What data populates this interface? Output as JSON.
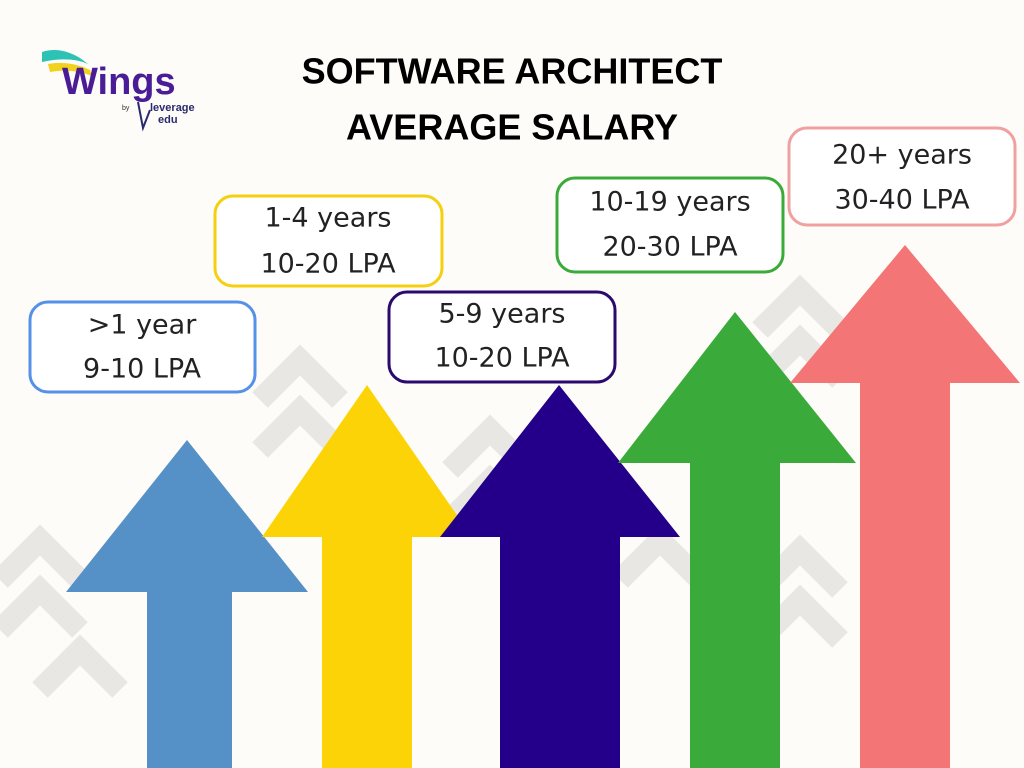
{
  "logo": {
    "name": "Wings",
    "by": "by",
    "brand": [
      "leverage",
      "edu"
    ]
  },
  "title": [
    "SOFTWARE ARCHITECT",
    "AVERAGE SALARY"
  ],
  "levels": [
    {
      "experience": ">1 year",
      "salary": "9-10 LPA"
    },
    {
      "experience": "1-4 years",
      "salary": "10-20 LPA"
    },
    {
      "experience": "5-9 years",
      "salary": "10-20 LPA"
    },
    {
      "experience": "10-19 years",
      "salary": "20-30 LPA"
    },
    {
      "experience": "20+ years",
      "salary": "30-40 LPA"
    }
  ]
}
